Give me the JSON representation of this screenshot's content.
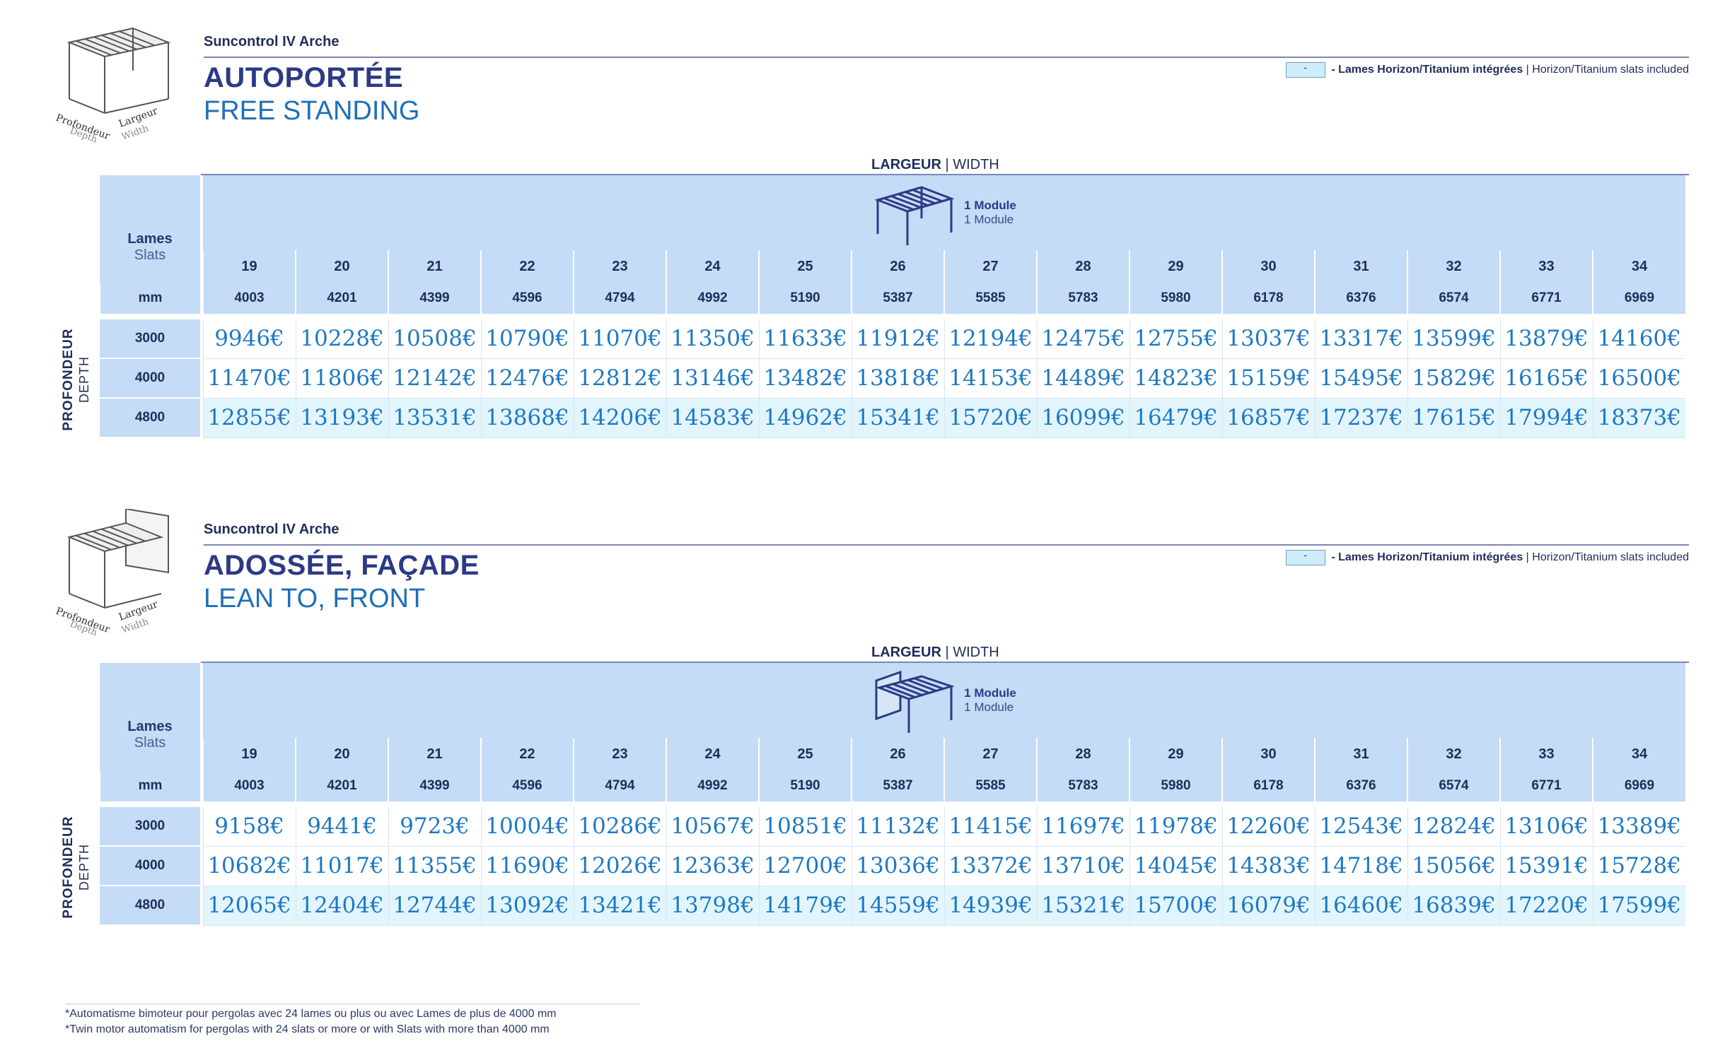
{
  "columns": {
    "lames": [
      "19",
      "20",
      "21",
      "22",
      "23",
      "24",
      "25",
      "26",
      "27",
      "28",
      "29",
      "30",
      "31",
      "32",
      "33",
      "34"
    ],
    "mm": [
      "4003",
      "4201",
      "4399",
      "4596",
      "4794",
      "4992",
      "5190",
      "5387",
      "5585",
      "5783",
      "5980",
      "6178",
      "6376",
      "6574",
      "6771",
      "6969"
    ]
  },
  "common": {
    "lames_label": "Lames",
    "slats_label": "Slats",
    "mm_label": "mm",
    "width_label_fr": "LARGEUR",
    "width_label_sep": " | ",
    "width_label_en": "WIDTH",
    "module_label_fr": "1 Module",
    "module_label_en": "1 Module",
    "depth_label_fr": "PROFONDEUR",
    "depth_label_en": "DEPTH",
    "legend_swatch_color": "#cdeefa",
    "legend_text_bold": "- Lames Horizon/Titanium intégrées",
    "legend_text_sep": " | ",
    "legend_text_en": "Horizon/Titanium slats included",
    "icon_caption_fr_depth": "Profondeur",
    "icon_caption_fr_width": "Largeur",
    "icon_caption_en_depth": "Depth",
    "icon_caption_en_width": "Width"
  },
  "sections": [
    {
      "subtitle": "Suncontrol IV Arche",
      "title_fr": "AUTOPORTÉE",
      "title_en": "FREE STANDING",
      "rows": [
        {
          "depth": "3000",
          "prices": [
            "9946€",
            "10228€",
            "10508€",
            "10790€",
            "11070€",
            "11350€",
            "11633€",
            "11912€",
            "12194€",
            "12475€",
            "12755€",
            "13037€",
            "13317€",
            "13599€",
            "13879€",
            "14160€"
          ]
        },
        {
          "depth": "4000",
          "prices": [
            "11470€",
            "11806€",
            "12142€",
            "12476€",
            "12812€",
            "13146€",
            "13482€",
            "13818€",
            "14153€",
            "14489€",
            "14823€",
            "15159€",
            "15495€",
            "15829€",
            "16165€",
            "16500€"
          ]
        },
        {
          "depth": "4800",
          "prices": [
            "12855€",
            "13193€",
            "13531€",
            "13868€",
            "14206€",
            "14583€",
            "14962€",
            "15341€",
            "15720€",
            "16099€",
            "16479€",
            "16857€",
            "17237€",
            "17615€",
            "17994€",
            "18373€"
          ]
        }
      ]
    },
    {
      "subtitle": "Suncontrol IV Arche",
      "title_fr": "ADOSSÉE, FAÇADE",
      "title_en": "LEAN TO, FRONT",
      "rows": [
        {
          "depth": "3000",
          "prices": [
            "9158€",
            "9441€",
            "9723€",
            "10004€",
            "10286€",
            "10567€",
            "10851€",
            "11132€",
            "11415€",
            "11697€",
            "11978€",
            "12260€",
            "12543€",
            "12824€",
            "13106€",
            "13389€"
          ]
        },
        {
          "depth": "4000",
          "prices": [
            "10682€",
            "11017€",
            "11355€",
            "11690€",
            "12026€",
            "12363€",
            "12700€",
            "13036€",
            "13372€",
            "13710€",
            "14045€",
            "14383€",
            "14718€",
            "15056€",
            "15391€",
            "15728€"
          ]
        },
        {
          "depth": "4800",
          "prices": [
            "12065€",
            "12404€",
            "12744€",
            "13092€",
            "13421€",
            "13798€",
            "14179€",
            "14559€",
            "14939€",
            "15321€",
            "15700€",
            "16079€",
            "16460€",
            "16839€",
            "17220€",
            "17599€"
          ]
        }
      ]
    }
  ],
  "footnote": {
    "line_fr": "*Automatisme bimoteur pour pergolas avec 24 lames ou plus ou avec Lames de plus de 4000 mm",
    "line_en": "*Twin motor automatism for pergolas with 24 slats or more or with Slats with more than 4000 mm"
  }
}
